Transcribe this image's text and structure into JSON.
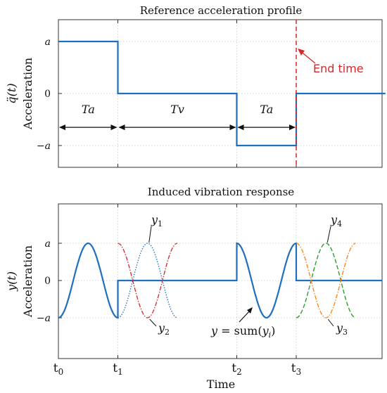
{
  "chart_data": [
    {
      "type": "line",
      "title": "Reference acceleration profile",
      "ylabel_symbol": "q̈(t)",
      "ylabel": "Acceleration",
      "yticks": [
        "a",
        "0",
        "−a"
      ],
      "ylim": [
        -1.35,
        1.0
      ],
      "x_ticks": [
        "t0",
        "t1",
        "t2",
        "t3"
      ],
      "series": [
        {
          "x": [
            0,
            0,
            1,
            1,
            3,
            3,
            4,
            4,
            5.5
          ],
          "y": [
            1,
            1,
            1,
            0,
            0,
            -1,
            -1,
            0,
            0
          ]
        }
      ],
      "annotations": {
        "Ta_left": "Ta",
        "Tv": "Tv",
        "Ta_right": "Ta",
        "end_time": "End time"
      },
      "grid": true
    },
    {
      "type": "line",
      "title": "Induced vibration response",
      "ylabel_symbol": "y(t)",
      "ylabel": "Acceleration",
      "yticks": [
        "a",
        "0",
        "−a"
      ],
      "ylim": [
        -1.95,
        1.95
      ],
      "x_ticks": [
        "t0",
        "t1",
        "t2",
        "t3"
      ],
      "xlabel": "Time",
      "series_labels": [
        "y1",
        "y2",
        "y3",
        "y4",
        "y = sum(yi)"
      ],
      "grid": true
    }
  ],
  "colors": {
    "blue": "#1f6fbf",
    "red": "#d62728",
    "green": "#2ca02c",
    "orange": "#ff7f0e",
    "grid": "#c8c8c8"
  }
}
